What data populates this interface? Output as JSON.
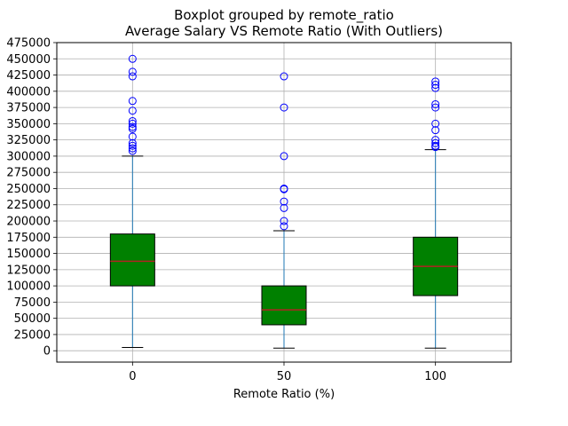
{
  "chart_data": {
    "type": "boxplot",
    "title": "Boxplot grouped by remote_ratio",
    "subtitle": "Average Salary VS Remote Ratio (With Outliers)",
    "xlabel": "Remote Ratio (%)",
    "ylabel": "",
    "ylim": [
      -17500,
      475000
    ],
    "yticks": [
      0,
      25000,
      50000,
      75000,
      100000,
      125000,
      150000,
      175000,
      200000,
      225000,
      250000,
      275000,
      300000,
      325000,
      350000,
      375000,
      400000,
      425000,
      450000,
      475000
    ],
    "ytick_labels": [
      "0",
      "25000",
      "50000",
      "75000",
      "100000",
      "125000",
      "150000",
      "175000",
      "200000",
      "225000",
      "250000",
      "275000",
      "300000",
      "325000",
      "350000",
      "375000",
      "400000",
      "425000",
      "450000",
      "475000"
    ],
    "grid": true,
    "colors": {
      "box_fill": "#008000",
      "box_edge": "#000000",
      "median": "#b22222",
      "whisker": "#1f77b4",
      "cap": "#000000",
      "outlier": "#0000ff",
      "grid": "#b0b0b0"
    },
    "categories": [
      "0",
      "50",
      "100"
    ],
    "groups": [
      {
        "category": "0",
        "whisker_low": 5000,
        "q1": 100000,
        "median": 138000,
        "q3": 180000,
        "whisker_high": 300000,
        "outliers": [
          308000,
          312000,
          316000,
          320000,
          330000,
          342000,
          345000,
          350000,
          354000,
          370000,
          385000,
          423000,
          430000,
          450000
        ]
      },
      {
        "category": "50",
        "whisker_low": 4000,
        "q1": 40000,
        "median": 63000,
        "q3": 100000,
        "whisker_high": 185000,
        "outliers": [
          192000,
          200000,
          220000,
          230000,
          249000,
          250000,
          300000,
          375000,
          423000
        ]
      },
      {
        "category": "100",
        "whisker_low": 4000,
        "q1": 85000,
        "median": 130000,
        "q3": 175000,
        "whisker_high": 310000,
        "outliers": [
          314000,
          316000,
          320000,
          325000,
          340000,
          350000,
          375000,
          380000,
          405000,
          410000,
          415000
        ]
      }
    ]
  }
}
